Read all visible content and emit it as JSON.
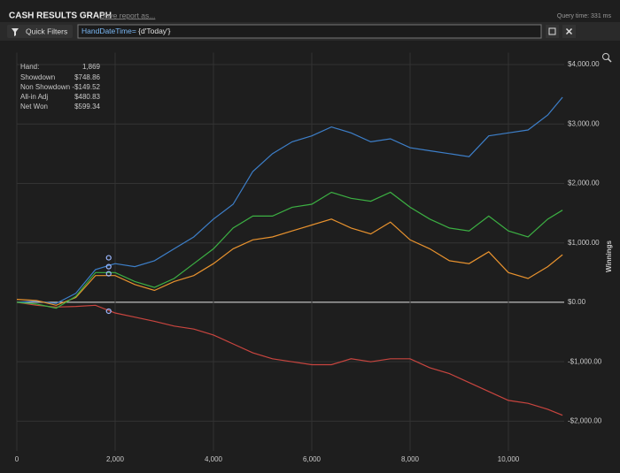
{
  "header": {
    "title": "CASH RESULTS GRAPH",
    "save_link": "Save report as...",
    "query_time": "Query time: 331 ms"
  },
  "filter_bar": {
    "button": "Quick Filters",
    "field": "HandDateTime=",
    "expression": " {d'Today'}"
  },
  "chart_data": {
    "type": "line",
    "y_label": "Winnings",
    "x": [
      0,
      400,
      800,
      1200,
      1600,
      2000,
      2400,
      2800,
      3200,
      3600,
      4000,
      4400,
      4800,
      5200,
      5600,
      6000,
      6400,
      6800,
      7200,
      7600,
      8000,
      8400,
      8800,
      9200,
      9600,
      10000,
      10400,
      10800,
      11100
    ],
    "series": [
      {
        "name": "Showdown",
        "color": "#3d7fc9",
        "values": [
          0,
          20,
          -20,
          150,
          550,
          650,
          600,
          700,
          900,
          1100,
          1400,
          1650,
          2200,
          2500,
          2700,
          2800,
          2950,
          2850,
          2700,
          2750,
          2600,
          2550,
          2500,
          2450,
          2800,
          2850,
          2900,
          3150,
          3450
        ]
      },
      {
        "name": "Non Showdown",
        "color": "#c9453f",
        "values": [
          0,
          -50,
          -80,
          -70,
          -50,
          -180,
          -250,
          -320,
          -400,
          -450,
          -550,
          -700,
          -850,
          -950,
          -1000,
          -1050,
          -1050,
          -950,
          -1000,
          -950,
          -950,
          -1100,
          -1200,
          -1350,
          -1500,
          -1650,
          -1700,
          -1800,
          -1900
        ]
      },
      {
        "name": "All-in Adj",
        "color": "#e8922e",
        "values": [
          50,
          30,
          -50,
          80,
          450,
          450,
          300,
          200,
          350,
          450,
          650,
          900,
          1050,
          1100,
          1200,
          1300,
          1400,
          1250,
          1150,
          1350,
          1050,
          900,
          700,
          650,
          850,
          500,
          400,
          600,
          800
        ]
      },
      {
        "name": "Net Won",
        "color": "#3cb043",
        "values": [
          0,
          -30,
          -100,
          100,
          500,
          500,
          350,
          250,
          400,
          650,
          900,
          1250,
          1450,
          1450,
          1600,
          1650,
          1850,
          1750,
          1700,
          1850,
          1600,
          1400,
          1250,
          1200,
          1450,
          1200,
          1100,
          1400,
          1550
        ]
      }
    ],
    "readout": {
      "x_label": "Hand:",
      "x": {
        "value": 1869,
        "label": "1,869"
      },
      "values": [
        748.86,
        -149.52,
        480.83,
        599.34
      ],
      "value_labels": [
        "$748.86",
        "-$149.52",
        "$480.83",
        "$599.34"
      ]
    },
    "xlim": [
      0,
      11135
    ],
    "ylim": [
      -2500,
      4200
    ],
    "xticks": [
      0,
      {
        "value": 2000,
        "label": "2,000"
      },
      {
        "value": 4000,
        "label": "4,000"
      },
      {
        "value": 6000,
        "label": "6,000"
      },
      {
        "value": 8000,
        "label": "8,000"
      },
      {
        "value": 10000,
        "label": "10,000"
      }
    ],
    "yticks": [
      {
        "value": -2000,
        "label": "-$2,000.00"
      },
      {
        "value": -1000,
        "label": "-$1,000.00"
      },
      {
        "value": 0,
        "label": "$0.00"
      },
      {
        "value": 1000,
        "label": "$1,000.00"
      },
      {
        "value": 2000,
        "label": "$2,000.00"
      },
      {
        "value": 3000,
        "label": "$3,000.00"
      },
      {
        "value": 4000,
        "label": "$4,000.00"
      }
    ],
    "grid": true
  }
}
